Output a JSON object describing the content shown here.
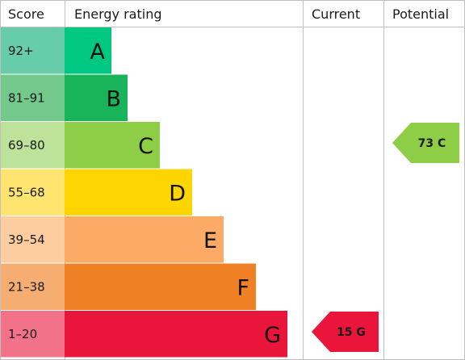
{
  "chart_data": {
    "type": "bar",
    "title": "",
    "headers": {
      "score": "Score",
      "rating": "Energy rating",
      "current": "Current",
      "potential": "Potential"
    },
    "bands": [
      {
        "letter": "A",
        "range": "92+",
        "score_min": 92,
        "score_max": 100,
        "color": "#00c781",
        "score_color": "#66ccaa"
      },
      {
        "letter": "B",
        "range": "81-91",
        "score_min": 81,
        "score_max": 91,
        "color": "#19b459",
        "score_color": "#72c98b"
      },
      {
        "letter": "C",
        "range": "69-80",
        "score_min": 69,
        "score_max": 80,
        "color": "#8dce46",
        "score_color": "#bde29a"
      },
      {
        "letter": "D",
        "range": "55-68",
        "score_min": 55,
        "score_max": 68,
        "color": "#ffd500",
        "score_color": "#ffe570"
      },
      {
        "letter": "E",
        "range": "39-54",
        "score_min": 39,
        "score_max": 54,
        "color": "#fcaa65",
        "score_color": "#fdcc9f"
      },
      {
        "letter": "F",
        "range": "21-38",
        "score_min": 21,
        "score_max": 38,
        "color": "#ef8023",
        "score_color": "#f5ad72"
      },
      {
        "letter": "G",
        "range": "1-20",
        "score_min": 1,
        "score_max": 20,
        "color": "#e9153b",
        "score_color": "#f2728a"
      }
    ],
    "current": {
      "value": 15,
      "letter": "G",
      "label": "15 G",
      "color": "#e9153b",
      "text_color": "#1a1a1a"
    },
    "potential": {
      "value": 73,
      "letter": "C",
      "label": "73 C",
      "color": "#8dce46",
      "text_color": "#1a1a1a"
    },
    "grid_color": "#bfbfbf"
  }
}
